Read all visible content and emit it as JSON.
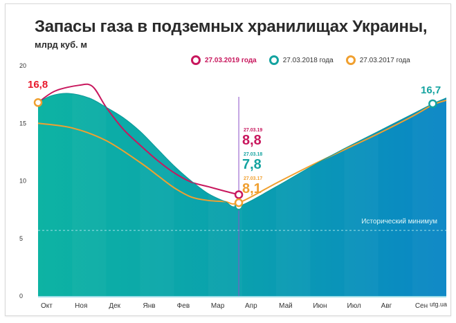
{
  "chart_data": {
    "type": "area",
    "title": "Запасы газа в подземных хранилищах Украины,",
    "subtitle": "млрд куб. м",
    "xlabel": "",
    "ylabel": "",
    "ylim": [
      0,
      20
    ],
    "yticks": [
      "0",
      "5",
      "10",
      "15",
      "20"
    ],
    "categories": [
      "Окт",
      "Ноя",
      "Дек",
      "Янв",
      "Фев",
      "Мар",
      "Апр",
      "Май",
      "Июн",
      "Июл",
      "Авг",
      "Сен"
    ],
    "x_units": "months since start of October",
    "series": [
      {
        "name": "27.03.2019 года",
        "color": "#c8175d",
        "style": "line",
        "x": [
          0,
          0.5,
          1.2,
          1.6,
          2,
          2.5,
          3,
          3.5,
          4,
          4.5,
          5,
          5.5,
          5.9
        ],
        "values": [
          16.8,
          17.8,
          18.3,
          18.2,
          16.4,
          14.5,
          13.1,
          11.8,
          10.7,
          9.9,
          9.5,
          9.1,
          8.8
        ]
      },
      {
        "name": "27.03.2018 года",
        "color": "#14a3a0",
        "style": "area",
        "x": [
          0,
          0.4,
          0.9,
          1.5,
          2,
          2.5,
          3,
          3.5,
          4,
          4.5,
          5,
          5.5,
          5.9,
          7,
          8,
          9,
          10,
          11,
          11.6,
          12
        ],
        "values": [
          16.8,
          17.4,
          17.6,
          17.2,
          16.4,
          15.5,
          14.3,
          12.8,
          11.3,
          10.0,
          8.9,
          8.2,
          7.8,
          9.5,
          11.2,
          12.8,
          14.3,
          15.8,
          16.7,
          17.2
        ]
      },
      {
        "name": "27.03.2017 года",
        "color": "#f0a030",
        "style": "line",
        "x": [
          0,
          1,
          2,
          3,
          3.5,
          4,
          4.5,
          5,
          5.5,
          5.9,
          7,
          8,
          9,
          10,
          11,
          11.6,
          12
        ],
        "values": [
          15.0,
          14.6,
          13.5,
          11.6,
          10.5,
          9.4,
          8.6,
          8.3,
          8.2,
          8.1,
          9.8,
          11.3,
          12.7,
          14.1,
          15.6,
          16.6,
          17.0
        ]
      }
    ],
    "historical_minimum": {
      "label": "Исторический минимум",
      "value": 5.7
    },
    "marker_date_x": 5.9,
    "annotations": {
      "start": "16,8",
      "end": "16,7",
      "values": [
        {
          "date": "27.03.19",
          "value": "8,8",
          "color": "#c8175d"
        },
        {
          "date": "27.03.18",
          "value": "7,8",
          "color": "#14a3a0"
        },
        {
          "date": "27.03.17",
          "value": "8,1",
          "color": "#f0a030"
        }
      ]
    },
    "source": "utg.ua",
    "grid": false,
    "legend": "top-right"
  }
}
